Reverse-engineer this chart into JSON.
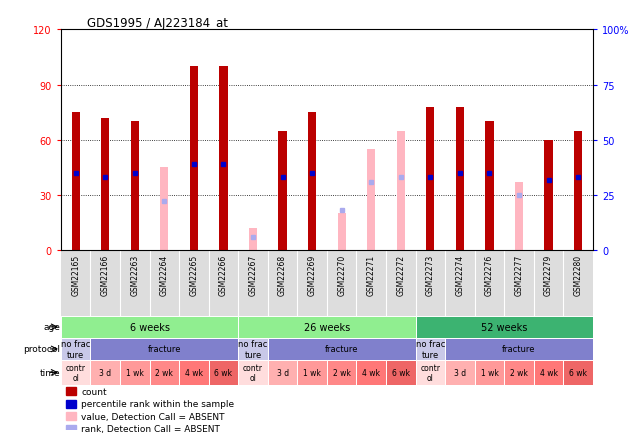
{
  "title": "GDS1995 / AJ223184_at",
  "samples": [
    "GSM22165",
    "GSM22166",
    "GSM22263",
    "GSM22264",
    "GSM22265",
    "GSM22266",
    "GSM22267",
    "GSM22268",
    "GSM22269",
    "GSM22270",
    "GSM22271",
    "GSM22272",
    "GSM22273",
    "GSM22274",
    "GSM22276",
    "GSM22277",
    "GSM22279",
    "GSM22280"
  ],
  "red_bars": [
    75,
    72,
    70,
    0,
    100,
    100,
    0,
    65,
    75,
    0,
    0,
    0,
    78,
    78,
    70,
    0,
    60,
    65
  ],
  "pink_bars": [
    0,
    0,
    0,
    45,
    0,
    0,
    12,
    0,
    0,
    20,
    55,
    65,
    0,
    0,
    0,
    37,
    0,
    0
  ],
  "blue_dots": [
    42,
    40,
    42,
    0,
    47,
    47,
    0,
    40,
    42,
    0,
    0,
    0,
    40,
    42,
    42,
    0,
    38,
    40
  ],
  "light_blue_dots": [
    0,
    0,
    0,
    27,
    0,
    0,
    7,
    0,
    0,
    22,
    37,
    40,
    0,
    0,
    0,
    30,
    0,
    0
  ],
  "ylim_left": [
    0,
    120
  ],
  "ylim_right": [
    0,
    100
  ],
  "yticks_left": [
    0,
    30,
    60,
    90,
    120
  ],
  "yticks_right": [
    0,
    25,
    50,
    75,
    100
  ],
  "ytick_labels_left": [
    "0",
    "30",
    "60",
    "90",
    "120"
  ],
  "ytick_labels_right": [
    "0",
    "25",
    "50",
    "75",
    "100%"
  ],
  "red_bar_color": "#BB0000",
  "pink_bar_color": "#FFB6C1",
  "blue_dot_color": "#0000CC",
  "light_blue_dot_color": "#AAAAEE",
  "bg_color": "#FFFFFF",
  "age_groups": [
    {
      "label": "6 weeks",
      "start": 0,
      "end": 6,
      "color": "#90EE90"
    },
    {
      "label": "26 weeks",
      "start": 6,
      "end": 12,
      "color": "#90EE90"
    },
    {
      "label": "52 weeks",
      "start": 12,
      "end": 18,
      "color": "#3CB371"
    }
  ],
  "protocol_groups": [
    {
      "label": "no frac\nture",
      "start": 0,
      "end": 1,
      "color": "#C8C8E8"
    },
    {
      "label": "fracture",
      "start": 1,
      "end": 6,
      "color": "#8080CC"
    },
    {
      "label": "no frac\nture",
      "start": 6,
      "end": 7,
      "color": "#C8C8E8"
    },
    {
      "label": "fracture",
      "start": 7,
      "end": 12,
      "color": "#8080CC"
    },
    {
      "label": "no frac\nture",
      "start": 12,
      "end": 13,
      "color": "#C8C8E8"
    },
    {
      "label": "fracture",
      "start": 13,
      "end": 18,
      "color": "#8080CC"
    }
  ],
  "time_labels": [
    "contr\nol",
    "3 d",
    "1 wk",
    "2 wk",
    "4 wk",
    "6 wk"
  ],
  "time_colors": [
    "#FFDDDD",
    "#FFB0B0",
    "#FF9999",
    "#FF8888",
    "#FF7777",
    "#EE6666"
  ],
  "legend_items": [
    {
      "label": "count",
      "color": "#BB0000"
    },
    {
      "label": "percentile rank within the sample",
      "color": "#0000CC"
    },
    {
      "label": "value, Detection Call = ABSENT",
      "color": "#FFB6C1"
    },
    {
      "label": "rank, Detection Call = ABSENT",
      "color": "#AAAAEE"
    }
  ]
}
